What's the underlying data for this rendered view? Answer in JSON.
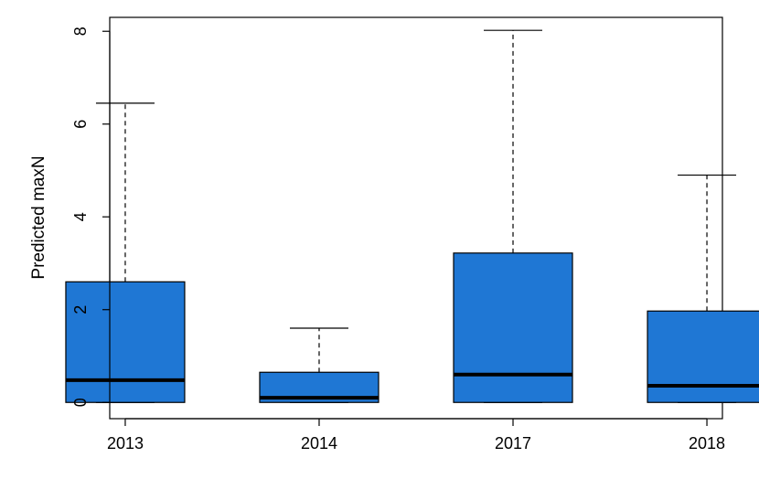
{
  "chart_data": {
    "type": "boxplot",
    "title": "",
    "xlabel": "",
    "ylabel": "Predicted maxN",
    "ylim": [
      -0.35,
      8.3
    ],
    "yticks": [
      0,
      2,
      4,
      6,
      8
    ],
    "grid": false,
    "legend": "none",
    "box_color": "#1f77d4",
    "categories": [
      "2013",
      "2014",
      "2017",
      "2018"
    ],
    "boxes": [
      {
        "category": "2013",
        "whisker_low": 0,
        "q1": 0,
        "median": 0.48,
        "q3": 2.6,
        "whisker_high": 6.45
      },
      {
        "category": "2014",
        "whisker_low": 0,
        "q1": 0,
        "median": 0.1,
        "q3": 0.65,
        "whisker_high": 1.6
      },
      {
        "category": "2017",
        "whisker_low": 0,
        "q1": 0,
        "median": 0.6,
        "q3": 3.22,
        "whisker_high": 8.02
      },
      {
        "category": "2018",
        "whisker_low": 0,
        "q1": 0,
        "median": 0.36,
        "q3": 1.97,
        "whisker_high": 4.9
      }
    ]
  }
}
